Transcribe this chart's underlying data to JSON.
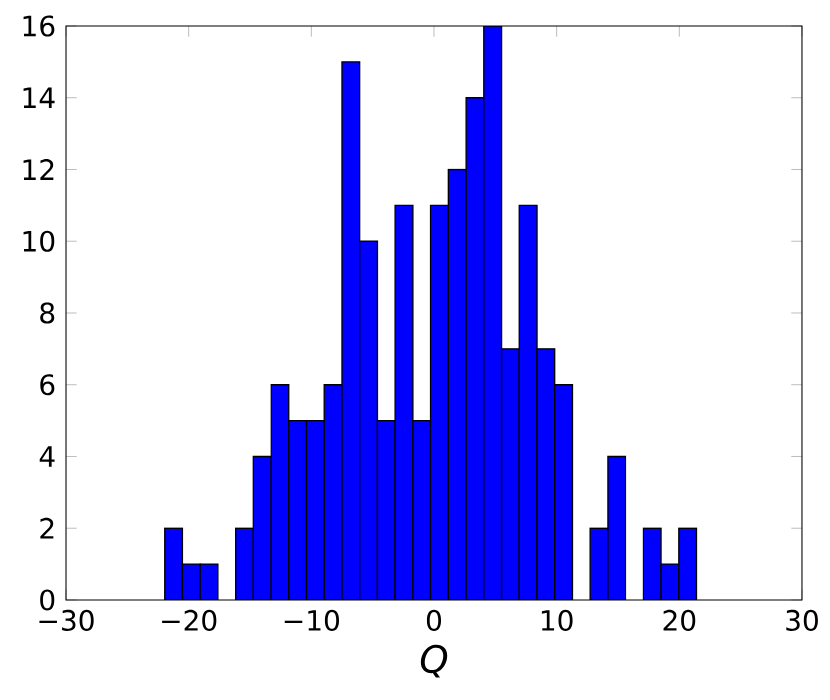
{
  "chart_data": {
    "type": "histogram",
    "xlabel": "Q",
    "bins": [
      -21.95,
      -20.51,
      -19.06,
      -17.62,
      -16.17,
      -14.73,
      -13.28,
      -11.84,
      -10.39,
      -8.95,
      -7.5,
      -6.06,
      -4.61,
      -3.17,
      -1.72,
      -0.28,
      1.17,
      2.62,
      4.06,
      5.51,
      6.95,
      8.4,
      9.84,
      11.29,
      12.73,
      14.18,
      15.62,
      17.07,
      18.51,
      19.96,
      21.4
    ],
    "values": [
      2,
      1,
      1,
      0,
      2,
      4,
      6,
      5,
      5,
      6,
      15,
      10,
      5,
      11,
      5,
      11,
      12,
      14,
      16,
      7,
      11,
      7,
      6,
      0,
      2,
      4,
      0,
      2,
      1,
      2
    ],
    "color": "#0000ff",
    "xlim": [
      -30,
      30
    ],
    "xticks": [
      {
        "value": -30,
        "label": "−30"
      },
      {
        "value": -20,
        "label": "−20"
      },
      {
        "value": -10,
        "label": "−10"
      },
      0,
      10,
      20,
      30
    ],
    "ylim": [
      0,
      16
    ],
    "yticks": [
      0,
      2,
      4,
      6,
      8,
      10,
      12,
      14,
      16
    ],
    "grid": false
  }
}
